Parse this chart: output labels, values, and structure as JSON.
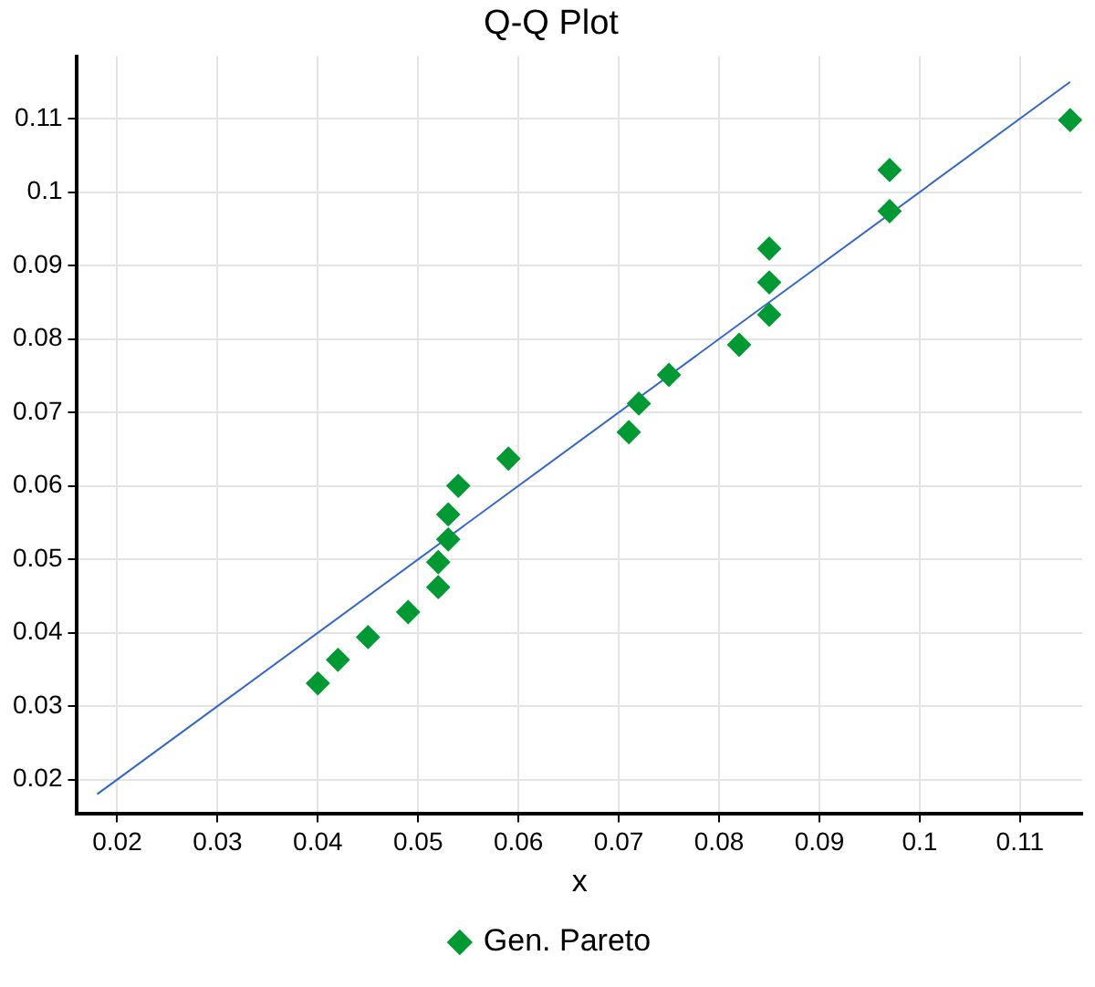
{
  "chart_data": {
    "type": "scatter",
    "title": "Q-Q Plot",
    "xlabel": "x",
    "marker": "diamond",
    "grid": true,
    "legend": "bottom",
    "xlim": [
      0.016,
      0.1162
    ],
    "ylim": [
      0.0154,
      0.1185
    ],
    "xticks": [
      0.02,
      0.03,
      0.04,
      0.05,
      0.06,
      0.07,
      0.08,
      0.09,
      0.1,
      0.11
    ],
    "yticks": [
      0.02,
      0.03,
      0.04,
      0.05,
      0.06,
      0.07,
      0.08,
      0.09,
      0.1,
      0.11
    ],
    "series": [
      {
        "name": "Gen. Pareto",
        "color": "#009933",
        "x": [
          0.04,
          0.042,
          0.045,
          0.049,
          0.052,
          0.052,
          0.053,
          0.053,
          0.054,
          0.059,
          0.071,
          0.072,
          0.075,
          0.082,
          0.085,
          0.085,
          0.085,
          0.097,
          0.097,
          0.115
        ],
        "values": [
          0.0331,
          0.0363,
          0.0394,
          0.0428,
          0.0462,
          0.0496,
          0.0527,
          0.0561,
          0.06,
          0.0637,
          0.0673,
          0.0712,
          0.0751,
          0.0792,
          0.0833,
          0.0877,
          0.0923,
          0.0974,
          0.103,
          0.1098
        ]
      },
      {
        "type": "line",
        "color": "#3366cc",
        "marker": "none",
        "x": [
          0.018,
          0.115
        ],
        "values": [
          0.018,
          0.115
        ]
      }
    ]
  }
}
